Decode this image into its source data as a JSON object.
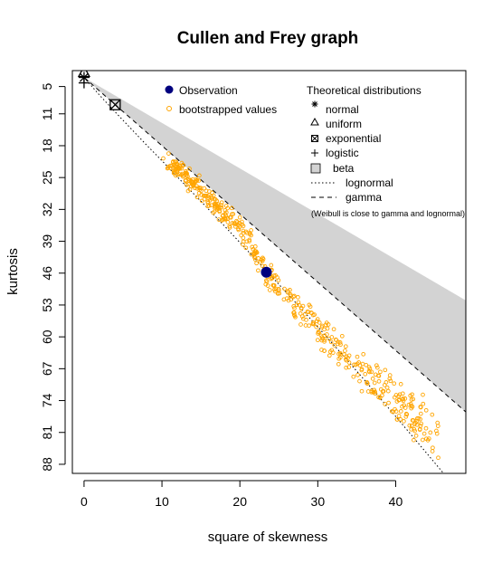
{
  "chart_data": {
    "type": "scatter",
    "title": "Cullen and Frey graph",
    "xlabel": "square of skewness",
    "ylabel": "kurtosis",
    "xlim": [
      -1.5,
      49
    ],
    "ylim": [
      90,
      1.5
    ],
    "y_reversed": true,
    "x_ticks": [
      "0",
      "10",
      "20",
      "30",
      "40"
    ],
    "y_ticks": [
      "5",
      "11",
      "18",
      "25",
      "32",
      "39",
      "46",
      "53",
      "60",
      "67",
      "74",
      "81",
      "88"
    ],
    "observation": {
      "x": 23.4,
      "y": 45.8
    },
    "bootstrap_cloud": {
      "x_range": [
        10,
        46
      ],
      "center_line": [
        [
          10,
          20.5
        ],
        [
          15,
          27.5
        ],
        [
          20,
          35.8
        ],
        [
          23.4,
          45.8
        ],
        [
          26,
          51
        ],
        [
          30,
          58
        ],
        [
          35,
          67
        ],
        [
          40,
          74
        ],
        [
          46,
          82
        ]
      ],
      "n_points": 500
    },
    "theoretical_points": {
      "normal": {
        "x": 0,
        "y": 3
      },
      "uniform": {
        "x": 0,
        "y": 1.8
      },
      "exponential": {
        "x": 4,
        "y": 9
      },
      "logistic": {
        "x": 0,
        "y": 4.2
      }
    },
    "lognormal_curve": [
      [
        0,
        3
      ],
      [
        2,
        6.9
      ],
      [
        4,
        10.6
      ],
      [
        6,
        14.2
      ],
      [
        8,
        17.8
      ],
      [
        10,
        21.3
      ],
      [
        12,
        24.9
      ],
      [
        15,
        30.2
      ],
      [
        18,
        35.6
      ],
      [
        21,
        41.1
      ],
      [
        24,
        46.6
      ],
      [
        27,
        52.2
      ],
      [
        30,
        57.8
      ],
      [
        33,
        63.6
      ],
      [
        36,
        69.5
      ],
      [
        40,
        77.5
      ],
      [
        44,
        85.6
      ],
      [
        48,
        93.8
      ]
    ],
    "gamma_line": [
      [
        0,
        3
      ],
      [
        49,
        76.5
      ]
    ],
    "beta_region_upper": [
      [
        0,
        3
      ],
      [
        49,
        52
      ]
    ],
    "legend": {
      "obs": [
        {
          "label": "Observation",
          "color": "#00007f",
          "marker": "filled-circle"
        },
        {
          "label": "bootstrapped values",
          "color": "#ffa500",
          "marker": "hollow-circle"
        }
      ],
      "theoretical_title": "Theoretical distributions",
      "theoretical": [
        {
          "label": "normal",
          "marker": "asterisk"
        },
        {
          "label": "uniform",
          "marker": "triangle"
        },
        {
          "label": "exponential",
          "marker": "boxed-x"
        },
        {
          "label": "logistic",
          "marker": "plus"
        },
        {
          "label": "beta",
          "marker": "grey-box"
        },
        {
          "label": "lognormal",
          "marker": "dotted-line"
        },
        {
          "label": "gamma",
          "marker": "dashed-line"
        }
      ],
      "note": "(Weibull is close to gamma and lognormal)"
    },
    "colors": {
      "beta_fill": "#d3d3d3",
      "observation": "#00007f",
      "bootstrap": "#ffa500"
    }
  }
}
